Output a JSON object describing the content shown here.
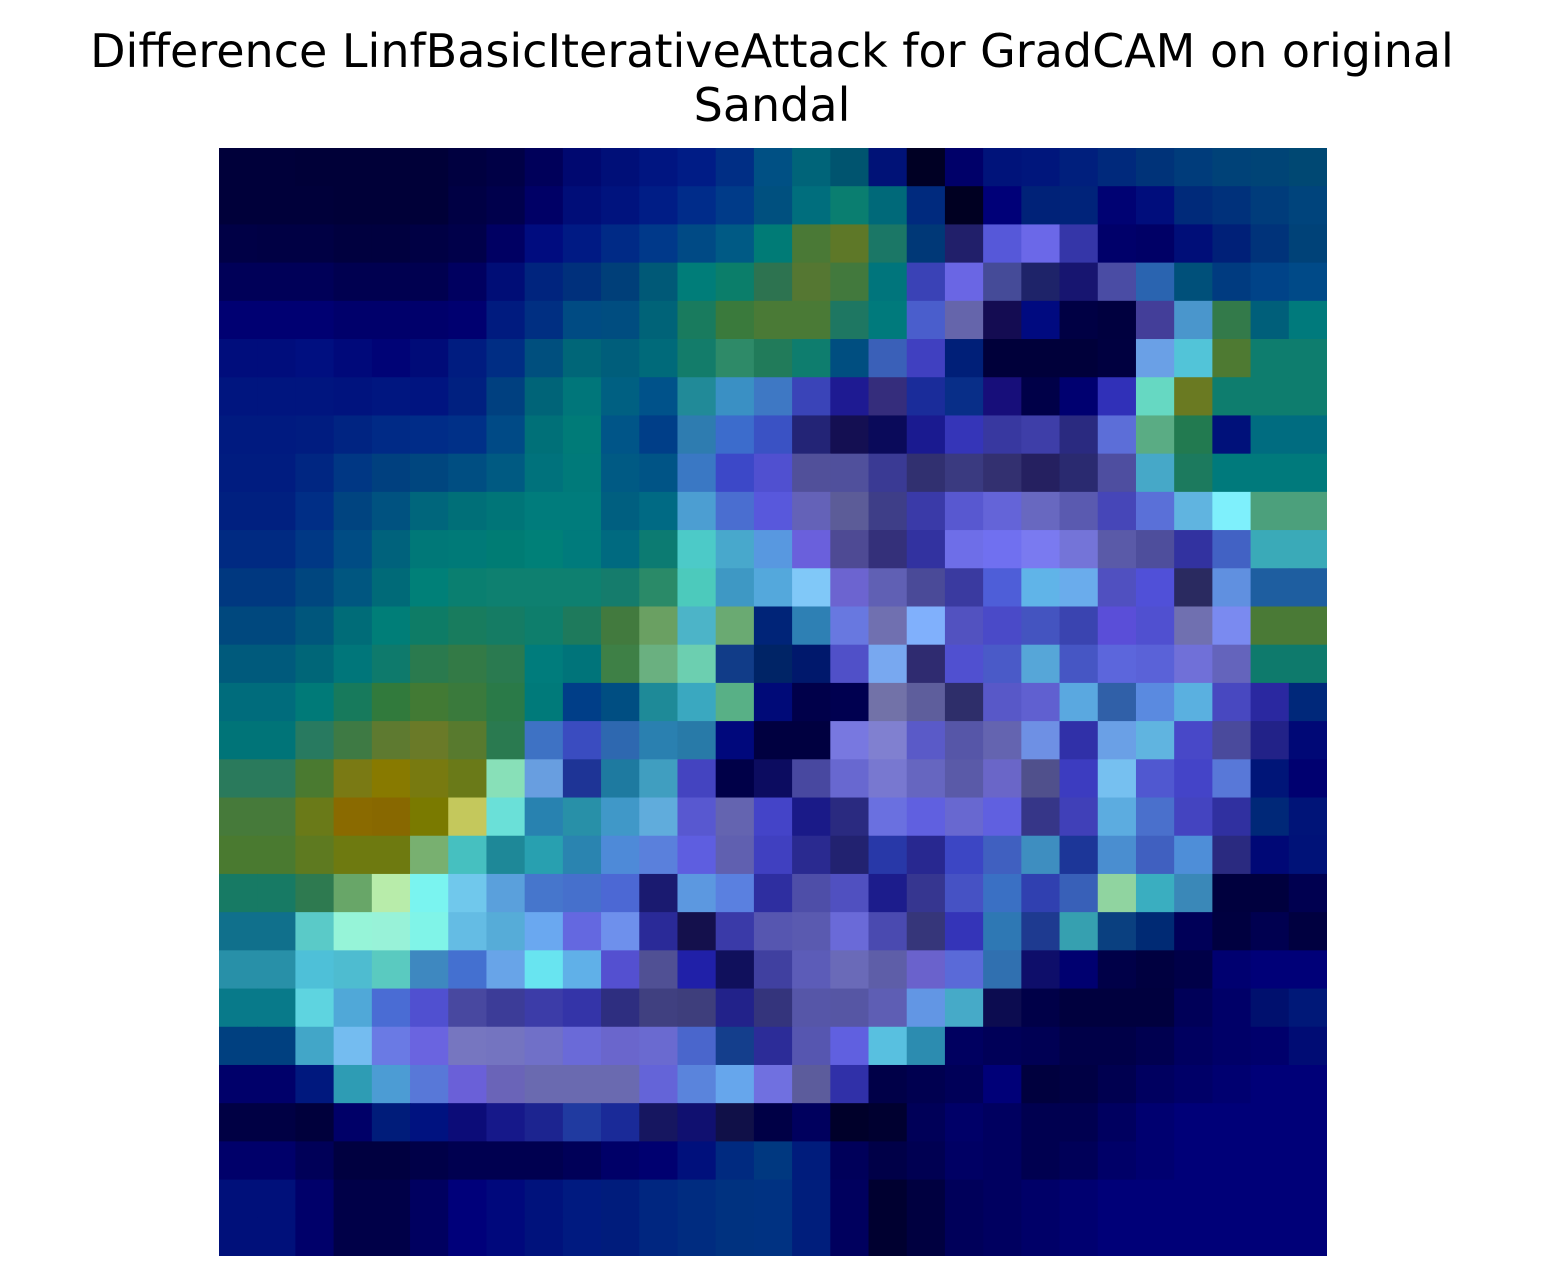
{
  "chart_data": {
    "type": "heatmap",
    "title": {
      "line1": "Difference LinfBasicIterativeAttack for GradCAM on original",
      "line2": "Sandal"
    },
    "rows": 29,
    "cols": 29,
    "axes_visible": false,
    "colorbar": false,
    "cells": [
      [
        "#00003a",
        "#00003a",
        "#000038",
        "#000038",
        "#000038",
        "#000038",
        "#000040",
        "#000046",
        "#00005a",
        "#000870",
        "#000f78",
        "#001581",
        "#001c86",
        "#002e85",
        "#005084",
        "#006479",
        "#00546f",
        "#001277",
        "#000024",
        "#000069",
        "#00137a",
        "#00167c",
        "#001f7d",
        "#00297c",
        "#003379",
        "#003c7b",
        "#004278",
        "#004476",
        "#004873"
      ],
      [
        "#00003a",
        "#00003a",
        "#00003a",
        "#000038",
        "#000038",
        "#000038",
        "#000044",
        "#00004c",
        "#000066",
        "#000d78",
        "#00137e",
        "#001d86",
        "#002c8a",
        "#003b89",
        "#00507f",
        "#006e7d",
        "#0a7e70",
        "#006979",
        "#002a7e",
        "#000022",
        "#000078",
        "#002278",
        "#00237a",
        "#000273",
        "#000d7c",
        "#002a7a",
        "#00317b",
        "#003c7b",
        "#00447c"
      ],
      [
        "#000046",
        "#000044",
        "#000044",
        "#00003f",
        "#00003f",
        "#000044",
        "#00004a",
        "#000063",
        "#000c7f",
        "#001a84",
        "#002a86",
        "#00398a",
        "#004a85",
        "#005a85",
        "#007b76",
        "#4a7936",
        "#5e7828",
        "#1b7766",
        "#003877",
        "#211f6a",
        "#5658d9",
        "#6b68e8",
        "#3536a8",
        "#00006a",
        "#000066",
        "#000e78",
        "#002078",
        "#00337a",
        "#004278"
      ],
      [
        "#000058",
        "#000058",
        "#000058",
        "#000050",
        "#000050",
        "#000050",
        "#000060",
        "#000d76",
        "#00247e",
        "#00307c",
        "#003f79",
        "#005977",
        "#007d79",
        "#0b7e6a",
        "#2d7350",
        "#557732",
        "#42793d",
        "#00757c",
        "#3a42b6",
        "#6a66e4",
        "#454b98",
        "#1e2369",
        "#171570",
        "#4a4ca4",
        "#2a64b0",
        "#00507a",
        "#003b80",
        "#004388",
        "#004a88"
      ],
      [
        "#000072",
        "#000072",
        "#000072",
        "#00006b",
        "#00006b",
        "#00006b",
        "#000070",
        "#001b7f",
        "#002f82",
        "#004b83",
        "#004d80",
        "#006378",
        "#197b5e",
        "#3a7a3c",
        "#4a7a36",
        "#4a7a36",
        "#1e7762",
        "#007a7c",
        "#4a5ecc",
        "#6565ab",
        "#140c52",
        "#000a80",
        "#000044",
        "#00003f",
        "#433e99",
        "#4a96cc",
        "#337a4a",
        "#005f7a",
        "#007a7c"
      ],
      [
        "#000d7c",
        "#000d7c",
        "#000f80",
        "#00097a",
        "#000376",
        "#000b78",
        "#001c80",
        "#002d84",
        "#004f7e",
        "#006678",
        "#005e7b",
        "#006a7a",
        "#137c6a",
        "#2e8a68",
        "#217b5a",
        "#0e7d6e",
        "#004e80",
        "#3a60b8",
        "#4040c0",
        "#001f78",
        "#00003a",
        "#00003a",
        "#00003a",
        "#000040",
        "#6aa0e6",
        "#52c4d8",
        "#4e7a32",
        "#0e7d6e",
        "#0e7d6e"
      ],
      [
        "#00157f",
        "#00157f",
        "#00157f",
        "#00137e",
        "#001680",
        "#001480",
        "#002080",
        "#004080",
        "#006478",
        "#00767a",
        "#006082",
        "#00528a",
        "#218a98",
        "#3a90c4",
        "#3e78c4",
        "#3a44b8",
        "#1e1a92",
        "#352d7c",
        "#1a2c9a",
        "#082e88",
        "#170e7a",
        "#000048",
        "#000070",
        "#3030b8",
        "#66d8c2",
        "#6a7a22",
        "#0e7d6e",
        "#0e7d6e",
        "#0e7d6e"
      ],
      [
        "#001a80",
        "#001a80",
        "#001c80",
        "#002482",
        "#002a86",
        "#002c88",
        "#003088",
        "#004a86",
        "#007078",
        "#007b78",
        "#005588",
        "#003e88",
        "#2e7cb0",
        "#3c6ccc",
        "#3a52c4",
        "#232476",
        "#140f52",
        "#0a0a5a",
        "#1a1a90",
        "#3535b8",
        "#3838a0",
        "#3e3ea8",
        "#2a2a80",
        "#5c6ed8",
        "#5aac84",
        "#227a50",
        "#00117a",
        "#006c80",
        "#006c80"
      ],
      [
        "#001c80",
        "#001c80",
        "#002682",
        "#003784",
        "#00407f",
        "#00467f",
        "#004e82",
        "#005a82",
        "#00727c",
        "#007a7a",
        "#005a84",
        "#005486",
        "#3a78c4",
        "#3c48c8",
        "#5050d0",
        "#51509a",
        "#50509c",
        "#3a3a94",
        "#313070",
        "#3a3a80",
        "#333070",
        "#252060",
        "#2a2a70",
        "#4e4ea0",
        "#46a8c8",
        "#1c7a5e",
        "#007a7c",
        "#007a7c",
        "#007a7c"
      ],
      [
        "#002080",
        "#002080",
        "#002e86",
        "#004480",
        "#005280",
        "#00667c",
        "#006f78",
        "#007578",
        "#007c7c",
        "#007c7c",
        "#005f80",
        "#006a84",
        "#4c9ed2",
        "#4a6ed0",
        "#5858dc",
        "#6462b8",
        "#5c5c98",
        "#3e3e88",
        "#3a3aa8",
        "#5858d0",
        "#6464d8",
        "#6868c0",
        "#5a5ab0",
        "#4646b8",
        "#5a70d8",
        "#60b4e0",
        "#7ef0fc",
        "#4ca07c",
        "#4ca07c"
      ],
      [
        "#002a82",
        "#002a82",
        "#003885",
        "#004c84",
        "#00627c",
        "#007878",
        "#007a78",
        "#007c74",
        "#008078",
        "#007b7c",
        "#006a80",
        "#0c7b72",
        "#4ccac8",
        "#48a8cc",
        "#5898e0",
        "#6a60dc",
        "#4e4a94",
        "#34307a",
        "#3232a0",
        "#6e6ee8",
        "#7070f0",
        "#7a7af0",
        "#7474d8",
        "#5a5aa8",
        "#4e4e9c",
        "#3232a0",
        "#4262c4",
        "#3aaab8",
        "#3aaab8"
      ],
      [
        "#003880",
        "#003880",
        "#00467f",
        "#005680",
        "#006a78",
        "#008078",
        "#0a7f70",
        "#0e8070",
        "#0e8070",
        "#0e8070",
        "#157c6c",
        "#2a8a68",
        "#4ccabc",
        "#3e98c4",
        "#54a8dc",
        "#80c8f8",
        "#6c64d0",
        "#6060b4",
        "#4a4a98",
        "#3a3aa0",
        "#4e5ed8",
        "#60b4e8",
        "#6aacec",
        "#5050c0",
        "#5050d8",
        "#2a2a60",
        "#6090e0",
        "#1e5ea0",
        "#1e5ea0"
      ],
      [
        "#00487e",
        "#00487e",
        "#00567c",
        "#006c78",
        "#007e78",
        "#0e7c66",
        "#187c5e",
        "#157c64",
        "#0e7e6c",
        "#1e7a5c",
        "#427a3e",
        "#6aa062",
        "#4cb4c8",
        "#6aaa72",
        "#002478",
        "#2e80b4",
        "#6878e0",
        "#7070b0",
        "#80b0fc",
        "#5252c0",
        "#4a4ac8",
        "#4454c0",
        "#3a44b0",
        "#5a4ed8",
        "#5050d0",
        "#7070b0",
        "#7a8af0",
        "#4a7a36",
        "#4a7a36"
      ],
      [
        "#005a7c",
        "#005a7c",
        "#006678",
        "#00767a",
        "#0e7a6c",
        "#2a7a4e",
        "#337a46",
        "#2a7a50",
        "#007c7c",
        "#00747a",
        "#3e8046",
        "#6ab080",
        "#6ccfb0",
        "#113c88",
        "#002466",
        "#00186c",
        "#5050c8",
        "#78a8f0",
        "#2f2b70",
        "#5050d0",
        "#4a5ac8",
        "#56a6d8",
        "#4656c4",
        "#5c66dc",
        "#5a62d8",
        "#7070d8",
        "#6464bc",
        "#0e7a6c",
        "#0e7a6c"
      ],
      [
        "#006c7c",
        "#006c7c",
        "#007a78",
        "#177a5c",
        "#317a3c",
        "#427a34",
        "#3a7a3c",
        "#2a7a48",
        "#007a7a",
        "#003e88",
        "#004e82",
        "#1e8a98",
        "#3aa8c0",
        "#58b086",
        "#000a78",
        "#00004a",
        "#000050",
        "#7272a8",
        "#5e5e9c",
        "#2e2e6a",
        "#5858c8",
        "#6060d0",
        "#5aa8e0",
        "#3060a8",
        "#5a8ae0",
        "#5ab0e0",
        "#4848c0",
        "#2a28a0",
        "#00287a"
      ],
      [
        "#007478",
        "#007478",
        "#287a60",
        "#3e7a44",
        "#5e7a30",
        "#6a7a28",
        "#587a2e",
        "#2a7a50",
        "#3e72c4",
        "#3a4cc0",
        "#2e68b0",
        "#2a80b0",
        "#287aa8",
        "#00087c",
        "#000040",
        "#000040",
        "#7878e0",
        "#8080d0",
        "#5a5ac8",
        "#5656a8",
        "#6464b0",
        "#6e90e4",
        "#3030a8",
        "#6aa0e6",
        "#60b4e0",
        "#4848c8",
        "#4a4a9c",
        "#222288",
        "#000876"
      ],
      [
        "#2a7a5c",
        "#2a7a5c",
        "#4a7a30",
        "#7a7a14",
        "#887a00",
        "#787a10",
        "#6a7a18",
        "#88e0b8",
        "#689ee0",
        "#1e3496",
        "#1e7aa0",
        "#409ec0",
        "#4444c0",
        "#000048",
        "#0c0c60",
        "#4848a0",
        "#6868d0",
        "#7878d0",
        "#6666c0",
        "#5a5aa8",
        "#6a66c8",
        "#50508c",
        "#3c3cc0",
        "#76c0f0",
        "#5058d0",
        "#4444c8",
        "#5878d8",
        "#001578",
        "#000070"
      ],
      [
        "#467a3a",
        "#467a3a",
        "#6a7a18",
        "#8a6a00",
        "#886800",
        "#7a7a00",
        "#c4c85c",
        "#6ae0d8",
        "#2882b0",
        "#2890a8",
        "#4098c8",
        "#60acdc",
        "#5858d0",
        "#6464b0",
        "#4444c8",
        "#1a1a88",
        "#2a2a80",
        "#6a70e0",
        "#6060e0",
        "#6868d0",
        "#6060e0",
        "#363688",
        "#4040b8",
        "#5cace0",
        "#4a70cc",
        "#4444c0",
        "#3030a0",
        "#002878",
        "#001478"
      ],
      [
        "#4a7a30",
        "#4a7a30",
        "#5e7a20",
        "#6e7a10",
        "#6e7a10",
        "#78b070",
        "#46c0c0",
        "#1e8898",
        "#28a0b0",
        "#2a84b0",
        "#4e8ad8",
        "#5a80dc",
        "#5e5ee0",
        "#6060b0",
        "#4040c0",
        "#2a2a90",
        "#222270",
        "#2838a8",
        "#282890",
        "#3c46c4",
        "#4060c0",
        "#3e8ec0",
        "#1c3698",
        "#4a8ed0",
        "#4060c0",
        "#4e8ed8",
        "#2a2a80",
        "#000876",
        "#001278"
      ],
      [
        "#177a64",
        "#177a64",
        "#2e7a50",
        "#68a668",
        "#b8ecaa",
        "#7af4f0",
        "#70c8ec",
        "#5aa0dc",
        "#4676cc",
        "#4670cc",
        "#4c68d4",
        "#1a1a70",
        "#5c98e0",
        "#5a80e0",
        "#2e2ea0",
        "#4e4ea8",
        "#5050c0",
        "#1c1c8c",
        "#363690",
        "#4652c4",
        "#3a70c4",
        "#3040b0",
        "#3860b8",
        "#90d4a0",
        "#3aaec0",
        "#3a88b8",
        "#00003e",
        "#00003e",
        "#000050"
      ],
      [
        "#10708c",
        "#10708c",
        "#5acac8",
        "#96f4d8",
        "#98f2d8",
        "#80f4e8",
        "#64bce4",
        "#56acd8",
        "#6aa8f0",
        "#6468e0",
        "#6e90ec",
        "#2a2a98",
        "#14104c",
        "#3a3aa8",
        "#5656b0",
        "#5a5ab0",
        "#6a6ad8",
        "#4a4ab0",
        "#36367a",
        "#3434b8",
        "#2e78b4",
        "#1e3a90",
        "#36a0b0",
        "#0a4080",
        "#002a74",
        "#000058",
        "#000040",
        "#000050",
        "#000040"
      ],
      [
        "#2890a8",
        "#2890a8",
        "#4ec0d8",
        "#4ebcd0",
        "#5acac0",
        "#3e88c0",
        "#4470d0",
        "#68a4e8",
        "#68e4f0",
        "#60b0e8",
        "#5450d0",
        "#505094",
        "#2020a8",
        "#10105c",
        "#4040a0",
        "#5c5cb8",
        "#6a6ab8",
        "#5e5ea8",
        "#6a62cc",
        "#5a6ad8",
        "#3070b0",
        "#0e0e6a",
        "#000070",
        "#000048",
        "#000040",
        "#000048",
        "#000070",
        "#000078",
        "#000078"
      ],
      [
        "#087a8a",
        "#087a8a",
        "#5ed4e0",
        "#50a8d8",
        "#4a6cd4",
        "#5050d0",
        "#4848a0",
        "#3c3c98",
        "#3c3ca8",
        "#3434a8",
        "#2e2e80",
        "#404080",
        "#3e3e7c",
        "#22228a",
        "#34347c",
        "#5656a8",
        "#5656a4",
        "#5e5eb4",
        "#6296e4",
        "#46aac8",
        "#0c0c50",
        "#000048",
        "#00003e",
        "#00003e",
        "#00003e",
        "#000058",
        "#000068",
        "#00106e",
        "#001878"
      ],
      [
        "#004080",
        "#004080",
        "#42a6c8",
        "#74bcf0",
        "#6a7ae4",
        "#6a64e0",
        "#7676c0",
        "#7474c0",
        "#7070c8",
        "#6a6ad8",
        "#6a66cc",
        "#6a6ad0",
        "#4a66cc",
        "#143e8c",
        "#2c2c98",
        "#5656b0",
        "#6060e0",
        "#58c0e0",
        "#2c8cb0",
        "#000060",
        "#000058",
        "#000054",
        "#000048",
        "#000048",
        "#000050",
        "#000060",
        "#000068",
        "#00006c",
        "#000c74"
      ],
      [
        "#00006a",
        "#00006a",
        "#00187e",
        "#2e9cb4",
        "#4c9cd4",
        "#5878d8",
        "#6a60d8",
        "#6a64b8",
        "#6a6ab0",
        "#6a6ab0",
        "#6a6ab0",
        "#6464d8",
        "#5a84dc",
        "#66a6ec",
        "#7070e0",
        "#5c5c9c",
        "#3030a8",
        "#000048",
        "#000050",
        "#000058",
        "#000078",
        "#00003e",
        "#000044",
        "#000050",
        "#000060",
        "#000068",
        "#000070",
        "#000078",
        "#000078"
      ],
      [
        "#000044",
        "#000044",
        "#00003c",
        "#000068",
        "#001c7a",
        "#001280",
        "#0c0c78",
        "#16188a",
        "#1c2490",
        "#203aa0",
        "#1a2a98",
        "#161660",
        "#101070",
        "#101048",
        "#000046",
        "#00005e",
        "#00002a",
        "#000030",
        "#000058",
        "#000068",
        "#000060",
        "#000050",
        "#000050",
        "#000060",
        "#000070",
        "#000078",
        "#000078",
        "#000078",
        "#000078"
      ],
      [
        "#00006a",
        "#00006a",
        "#000058",
        "#000040",
        "#000040",
        "#000048",
        "#000050",
        "#000050",
        "#000050",
        "#000058",
        "#000068",
        "#000070",
        "#00107c",
        "#002a80",
        "#003880",
        "#001c7c",
        "#00005a",
        "#000048",
        "#000052",
        "#000064",
        "#000060",
        "#000050",
        "#000058",
        "#000068",
        "#000070",
        "#000078",
        "#000078",
        "#000078",
        "#000078"
      ],
      [
        "#00107a",
        "#00107a",
        "#00006a",
        "#000048",
        "#000048",
        "#000060",
        "#00007a",
        "#00087c",
        "#00127c",
        "#001a80",
        "#001c7c",
        "#002680",
        "#002c80",
        "#003280",
        "#003282",
        "#001e7c",
        "#00005e",
        "#000030",
        "#000040",
        "#00005a",
        "#000060",
        "#000068",
        "#000070",
        "#000078",
        "#000078",
        "#000078",
        "#000078",
        "#000078",
        "#000078"
      ],
      [
        "#00107a",
        "#00107a",
        "#00006a",
        "#000048",
        "#000048",
        "#000060",
        "#00007a",
        "#00087c",
        "#00127c",
        "#001a80",
        "#001c7c",
        "#002680",
        "#002c80",
        "#003280",
        "#003282",
        "#001e7c",
        "#00005e",
        "#000030",
        "#000040",
        "#00005a",
        "#000060",
        "#000068",
        "#000070",
        "#000078",
        "#000078",
        "#000078",
        "#000078",
        "#000078",
        "#000078"
      ]
    ]
  }
}
